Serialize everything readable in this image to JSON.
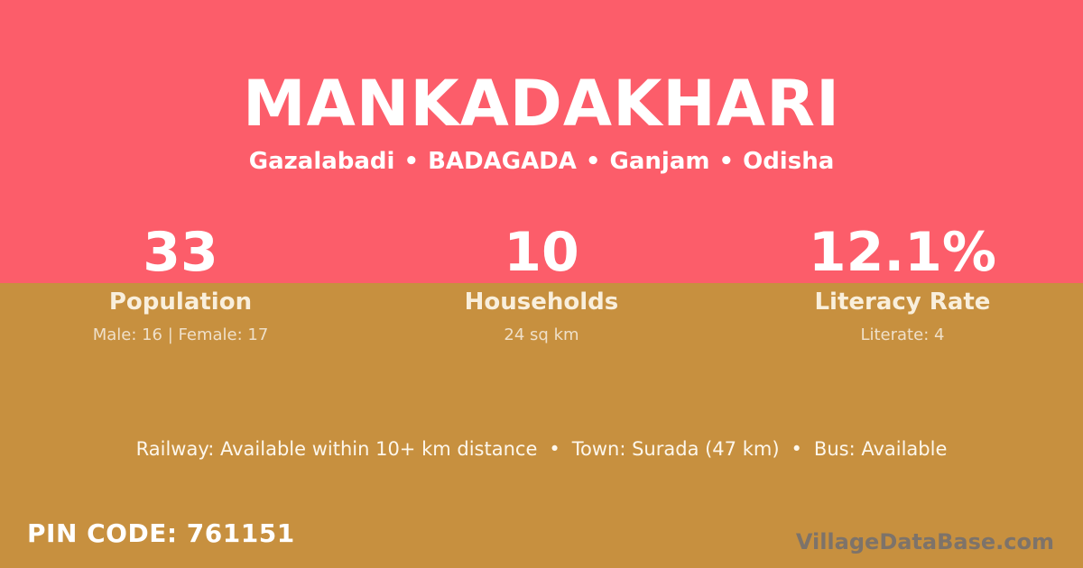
{
  "colors": {
    "top_background": "#fc5d6a",
    "bottom_background": "#c7903f",
    "title_text": "#ffffff",
    "label_text": "#f9efdc",
    "sublabel_text": "rgba(255,255,255,0.72)",
    "watermark_text": "#6c6c74"
  },
  "header": {
    "title": "MANKADAKHARI",
    "subtitle": {
      "separator": "•",
      "parts": [
        "Gazalabadi",
        "BADAGADA",
        "Ganjam",
        "Odisha"
      ]
    }
  },
  "stats": [
    {
      "value": "33",
      "label": "Population",
      "sublabel": "Male: 16 | Female: 17"
    },
    {
      "value": "10",
      "label": "Households",
      "sublabel": "24 sq km"
    },
    {
      "value": "12.1%",
      "label": "Literacy Rate",
      "sublabel": "Literate: 4"
    }
  ],
  "transport": {
    "separator": "•",
    "parts": [
      "Railway: Available within 10+ km distance",
      "Town: Surada (47 km)",
      "Bus: Available"
    ]
  },
  "footer": {
    "pin_code": "PIN CODE: 761151",
    "watermark": "VillageDataBase.com"
  }
}
